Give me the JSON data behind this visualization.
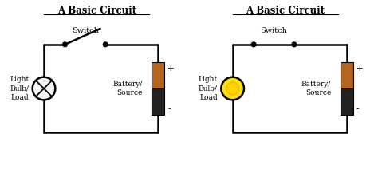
{
  "title": "A Basic Circuit",
  "bg_color": "#ffffff",
  "wire_color": "#000000",
  "text_color": "#000000",
  "switch_label": "Switch",
  "bulb_label": "Light\nBulb/\nLoad",
  "battery_label": "Battery/\nSource",
  "plus_label": "+",
  "minus_label": "-",
  "bulb_off_color": "#f5f5f5",
  "bulb_on_color": "#FFE000",
  "bulb_on_inner": "#FFD700",
  "battery_top_color": "#b5651d",
  "battery_bot_color": "#222222",
  "lw": 1.8
}
